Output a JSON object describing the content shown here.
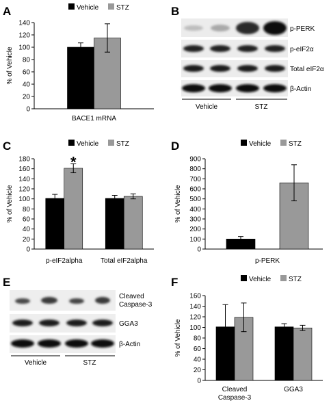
{
  "figure": {
    "panels": {
      "A": "A",
      "B": "B",
      "C": "C",
      "D": "D",
      "E": "E",
      "F": "F"
    },
    "blot_B": {
      "bands": [
        "p-PERK",
        "p-eIF2α",
        "Total eIF2α",
        "β-Actin"
      ],
      "groups": [
        "Vehicle",
        "STZ"
      ]
    },
    "blot_E": {
      "bands": [
        "Cleaved\nCaspase-3",
        "GGA3",
        "β-Actin"
      ],
      "groups": [
        "Vehicle",
        "STZ"
      ]
    },
    "colors": {
      "vehicle": "#000000",
      "stz": "#999999"
    }
  },
  "chart_data": [
    {
      "panel": "A",
      "type": "bar",
      "categories": [
        "BACE1 mRNA"
      ],
      "series": [
        {
          "name": "Vehicle",
          "values": [
            100
          ],
          "errors": [
            7
          ]
        },
        {
          "name": "STZ",
          "values": [
            115
          ],
          "errors": [
            23
          ]
        }
      ],
      "xlabel": "",
      "ylabel": "% of Vehicle",
      "ylim": [
        0,
        140
      ],
      "yticks": [
        0,
        20,
        40,
        60,
        80,
        100,
        120,
        140
      ],
      "legend": "top",
      "significance": []
    },
    {
      "panel": "C",
      "type": "bar",
      "categories": [
        "p-eIF2alpha",
        "Total eIF2alpha"
      ],
      "series": [
        {
          "name": "Vehicle",
          "values": [
            101,
            101
          ],
          "errors": [
            8,
            6
          ]
        },
        {
          "name": "STZ",
          "values": [
            161,
            105
          ],
          "errors": [
            9,
            5
          ]
        }
      ],
      "xlabel": "",
      "ylabel": "% of Vehicle",
      "ylim": [
        0,
        180
      ],
      "yticks": [
        0,
        20,
        40,
        60,
        80,
        100,
        120,
        140,
        160,
        180
      ],
      "legend": "top",
      "significance": [
        {
          "category": 0,
          "series": 1,
          "mark": "*"
        }
      ]
    },
    {
      "panel": "D",
      "type": "bar",
      "categories": [
        "p-PERK"
      ],
      "series": [
        {
          "name": "Vehicle",
          "values": [
            100
          ],
          "errors": [
            25
          ]
        },
        {
          "name": "STZ",
          "values": [
            660
          ],
          "errors": [
            180
          ]
        }
      ],
      "xlabel": "",
      "ylabel": "% of Vehicle",
      "ylim": [
        0,
        900
      ],
      "yticks": [
        0,
        100,
        200,
        300,
        400,
        500,
        600,
        700,
        800,
        900
      ],
      "legend": "top",
      "significance": []
    },
    {
      "panel": "F",
      "type": "bar",
      "categories": [
        "Cleaved\nCaspase-3",
        "GGA3"
      ],
      "series": [
        {
          "name": "Vehicle",
          "values": [
            101,
            101
          ],
          "errors": [
            42,
            6
          ]
        },
        {
          "name": "STZ",
          "values": [
            119,
            99
          ],
          "errors": [
            27,
            5
          ]
        }
      ],
      "xlabel": "",
      "ylabel": "% of Vehicle",
      "ylim": [
        0,
        160
      ],
      "yticks": [
        0,
        20,
        40,
        60,
        80,
        100,
        120,
        140,
        160
      ],
      "legend": "top",
      "significance": []
    }
  ]
}
